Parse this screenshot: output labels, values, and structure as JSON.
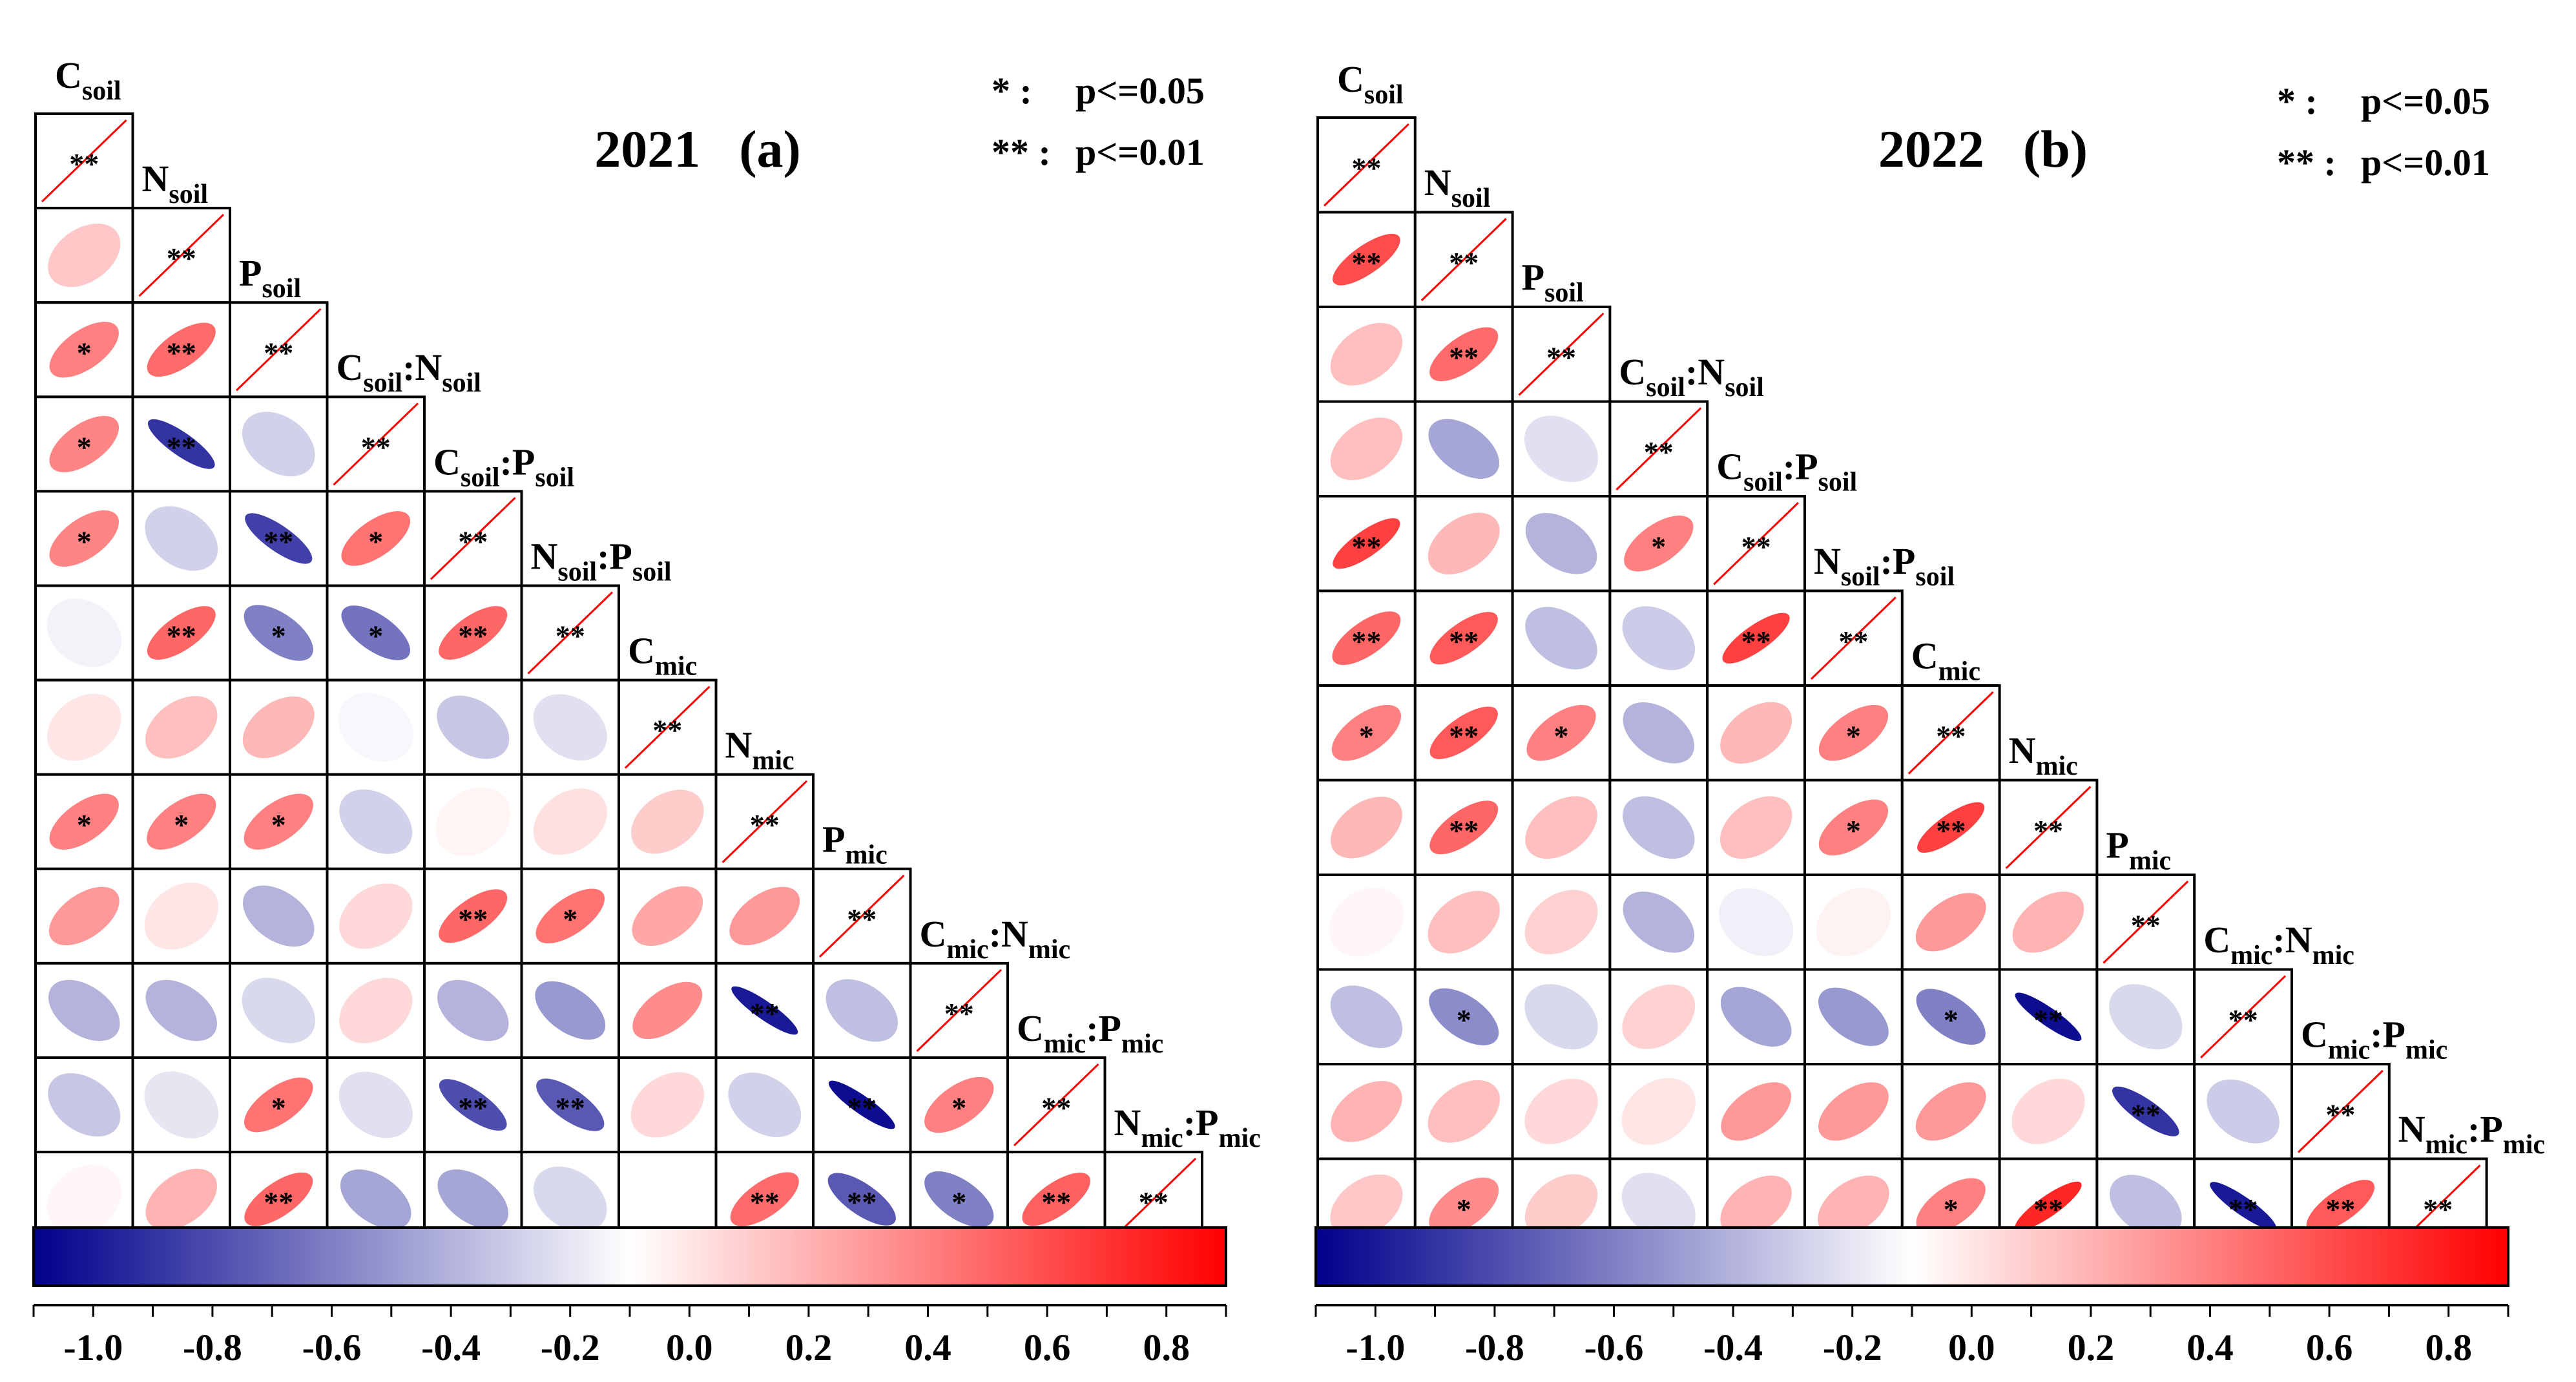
{
  "variables": [
    {
      "base": "C",
      "sub": "soil"
    },
    {
      "base": "N",
      "sub": "soil"
    },
    {
      "base": "P",
      "sub": "soil"
    },
    {
      "base": "C",
      "sub": "soil",
      "sep": ":",
      "base2": "N",
      "sub2": "soil"
    },
    {
      "base": "C",
      "sub": "soil",
      "sep": ":",
      "base2": "P",
      "sub2": "soil"
    },
    {
      "base": "N",
      "sub": "soil",
      "sep": ":",
      "base2": "P",
      "sub2": "soil"
    },
    {
      "base": "C",
      "sub": "mic"
    },
    {
      "base": "N",
      "sub": "mic"
    },
    {
      "base": "P",
      "sub": "mic"
    },
    {
      "base": "C",
      "sub": "mic",
      "sep": ":",
      "base2": "N",
      "sub2": "mic"
    },
    {
      "base": "C",
      "sub": "mic",
      "sep": ":",
      "base2": "P",
      "sub2": "mic"
    },
    {
      "base": "N",
      "sub": "mic",
      "sep": ":",
      "base2": "P",
      "sub2": "mic"
    }
  ],
  "significance_legend": [
    {
      "symbol": "* :",
      "text": "p<=0.05"
    },
    {
      "symbol": "** :",
      "text": "p<=0.01"
    }
  ],
  "colorbar": {
    "ticks": [
      "-1.0",
      "-0.8",
      "-0.6",
      "-0.4",
      "-0.2",
      "0.0",
      "0.2",
      "0.4",
      "0.6",
      "0.8"
    ],
    "min": -1.0,
    "max": 1.0,
    "neg_color": "#00008B",
    "mid_color": "#FFFFFF",
    "pos_color": "#FF0000"
  },
  "chart_data": [
    {
      "type": "heatmap",
      "title_year": "2021",
      "title_panel": "(a)",
      "diagonal_label": "**",
      "values": [
        [
          0.22
        ],
        [
          0.5,
          0.58
        ],
        [
          0.48,
          -0.8,
          -0.18
        ],
        [
          0.48,
          -0.18,
          -0.75,
          0.55
        ],
        [
          -0.05,
          0.6,
          -0.5,
          -0.55,
          0.6
        ],
        [
          0.1,
          0.25,
          0.28,
          -0.03,
          -0.22,
          -0.12
        ],
        [
          0.5,
          0.5,
          0.5,
          -0.18,
          0.04,
          0.12,
          0.2
        ],
        [
          0.4,
          0.1,
          -0.3,
          0.15,
          0.6,
          0.55,
          0.35,
          0.4
        ],
        [
          -0.3,
          -0.3,
          -0.15,
          0.15,
          -0.3,
          -0.4,
          0.45,
          -0.9,
          -0.25
        ],
        [
          -0.22,
          -0.1,
          0.55,
          -0.12,
          -0.7,
          -0.65,
          0.15,
          -0.18,
          -0.95,
          0.5
        ],
        [
          0.03,
          0.3,
          0.6,
          -0.35,
          -0.35,
          -0.15,
          0.0,
          0.58,
          -0.65,
          -0.5,
          0.62
        ]
      ],
      "stars": [
        [
          ""
        ],
        [
          "*",
          "**"
        ],
        [
          "*",
          "**",
          ""
        ],
        [
          "*",
          "",
          "**",
          "*"
        ],
        [
          "",
          "**",
          "*",
          "*",
          "**"
        ],
        [
          "",
          "",
          "",
          "",
          "",
          ""
        ],
        [
          "*",
          "*",
          "*",
          "",
          "",
          "",
          ""
        ],
        [
          "",
          "",
          "",
          "",
          "**",
          "*",
          "",
          ""
        ],
        [
          "",
          "",
          "",
          "",
          "",
          "",
          "",
          "**",
          ""
        ],
        [
          "",
          "",
          "*",
          "",
          "**",
          "**",
          "",
          "",
          "**",
          "*"
        ],
        [
          "",
          "",
          "**",
          "",
          "",
          "",
          "",
          "**",
          "**",
          "*",
          "**"
        ]
      ]
    },
    {
      "type": "heatmap",
      "title_year": "2022",
      "title_panel": "(b)",
      "diagonal_label": "**",
      "values": [
        [
          0.7
        ],
        [
          0.25,
          0.58
        ],
        [
          0.25,
          -0.35,
          -0.12
        ],
        [
          0.75,
          0.28,
          -0.3,
          0.5
        ],
        [
          0.6,
          0.65,
          -0.25,
          -0.2,
          0.75
        ],
        [
          0.5,
          0.65,
          0.5,
          -0.3,
          0.28,
          0.5
        ],
        [
          0.28,
          0.6,
          0.25,
          -0.25,
          0.25,
          0.5,
          0.75
        ],
        [
          0.03,
          0.25,
          0.18,
          -0.3,
          -0.06,
          0.05,
          0.4,
          0.3
        ],
        [
          -0.25,
          -0.45,
          -0.15,
          0.18,
          -0.35,
          -0.4,
          -0.5,
          -0.95,
          -0.15
        ],
        [
          0.3,
          0.25,
          0.15,
          0.1,
          0.4,
          0.4,
          0.4,
          0.15,
          -0.8,
          -0.2
        ],
        [
          0.22,
          0.45,
          0.2,
          -0.12,
          0.3,
          0.3,
          0.5,
          0.85,
          -0.25,
          -0.9,
          0.65
        ]
      ],
      "stars": [
        [
          "**"
        ],
        [
          "",
          "**"
        ],
        [
          "",
          "",
          ""
        ],
        [
          "**",
          "",
          "",
          "*"
        ],
        [
          "**",
          "**",
          "",
          "",
          "**"
        ],
        [
          "*",
          "**",
          "*",
          "",
          "",
          "*"
        ],
        [
          "",
          "**",
          "",
          "",
          "",
          "*",
          "**"
        ],
        [
          "",
          "",
          "",
          "",
          "",
          "",
          "",
          ""
        ],
        [
          "",
          "*",
          "",
          "",
          "",
          "",
          "*",
          "**",
          ""
        ],
        [
          "",
          "",
          "",
          "",
          "",
          "",
          "",
          "",
          "**",
          ""
        ],
        [
          "",
          "*",
          "",
          "",
          "",
          "",
          "*",
          "**",
          "",
          "**",
          "**"
        ]
      ]
    }
  ]
}
